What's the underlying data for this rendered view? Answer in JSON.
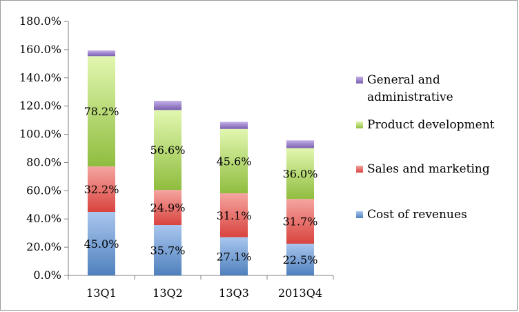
{
  "chart_data": {
    "type": "bar",
    "stacked": true,
    "categories": [
      "13Q1",
      "13Q2",
      "13Q3",
      "2013Q4"
    ],
    "series": [
      {
        "name": "Cost of revenues",
        "values": [
          45.0,
          35.7,
          27.1,
          22.5
        ],
        "labels": [
          "45.0%",
          "35.7%",
          "27.1%",
          "22.5%"
        ],
        "color": "#4f81bd",
        "light": "#a9c6ef"
      },
      {
        "name": "Sales and marketing",
        "values": [
          32.2,
          24.9,
          31.1,
          31.7
        ],
        "labels": [
          "32.2%",
          "24.9%",
          "31.1%",
          "31.7%"
        ],
        "color": "#d9443f",
        "light": "#f5a5a0"
      },
      {
        "name": "Product development",
        "values": [
          78.2,
          56.6,
          45.6,
          36.0
        ],
        "labels": [
          "78.2%",
          "56.6%",
          "45.6%",
          "36.0%"
        ],
        "color": "#8fbd3f",
        "light": "#e2f7b0"
      },
      {
        "name": "General and administrative",
        "values": [
          4.0,
          6.5,
          5.0,
          5.5
        ],
        "labels": [
          "",
          "",
          "",
          ""
        ],
        "color": "#7a5fb0",
        "light": "#c4b0e8"
      }
    ],
    "legend_order": [
      "General and administrative",
      "Product development",
      "Sales and marketing",
      "Cost of revenues"
    ],
    "legend_display": [
      [
        "General and",
        "administrative"
      ],
      [
        "Product development"
      ],
      [
        "Sales and marketing"
      ],
      [
        "Cost of revenues"
      ]
    ],
    "ylim": [
      0,
      180
    ],
    "yticks": [
      0,
      20,
      40,
      60,
      80,
      100,
      120,
      140,
      160,
      180
    ],
    "ytick_labels": [
      "0.0%",
      "20.0%",
      "40.0%",
      "60.0%",
      "80.0%",
      "100.0%",
      "120.0%",
      "140.0%",
      "160.0%",
      "180.0%"
    ],
    "grid": false,
    "legend_position": "right",
    "title": "",
    "xlabel": "",
    "ylabel": ""
  }
}
